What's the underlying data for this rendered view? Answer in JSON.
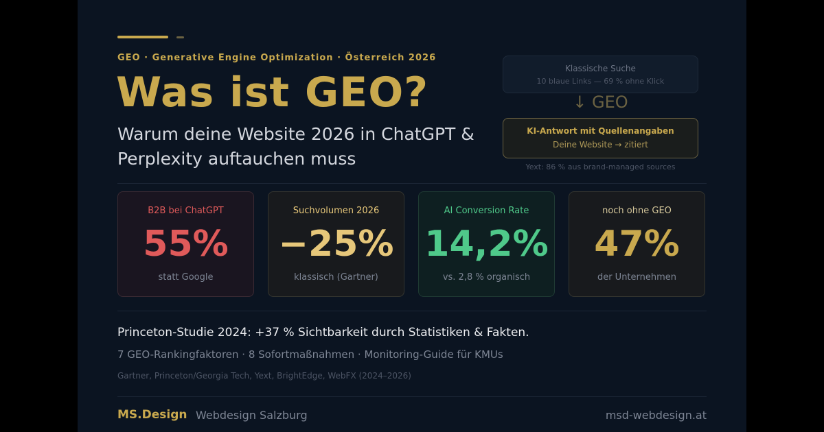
{
  "eyebrow": "GEO · Generative Engine Optimization · Österreich 2026",
  "title": "Was ist GEO?",
  "subtitle": "Warum deine Website 2026 in ChatGPT & Perplexity auftauchen muss",
  "comparison": {
    "classic_title": "Klassische Suche",
    "classic_sub": "10 blaue Links — 69 % ohne Klick",
    "arrow_label": "↓ GEO",
    "ki_title": "KI-Antwort mit Quellenangaben",
    "ki_sub": "Deine Website → zitiert",
    "note": "Yext: 86 % aus brand-managed sources"
  },
  "stats": [
    {
      "label": "B2B bei ChatGPT",
      "value": "55%",
      "sub": "statt Google",
      "color": "#e05a5a"
    },
    {
      "label": "Suchvolumen 2026",
      "value": "−25%",
      "sub": "klassisch (Gartner)",
      "color": "#e6c77a"
    },
    {
      "label": "AI Conversion Rate",
      "value": "14,2%",
      "sub": "vs. 2,8 % organisch",
      "color": "#4fc98a"
    },
    {
      "label": "noch ohne GEO",
      "value": "47%",
      "sub": "der Unternehmen",
      "color": "#c9a94e"
    }
  ],
  "princeton": "Princeton-Studie 2024: +37 % Sichtbarkeit durch Statistiken & Fakten.",
  "factors": "7 GEO-Rankingfaktoren · 8 Sofortmaßnahmen · Monitoring-Guide für KMUs",
  "sources": "Gartner, Princeton/Georgia Tech, Yext, BrightEdge, WebFX (2024–2026)",
  "footer": {
    "brand": "MS.Design",
    "brand_sub": "Webdesign Salzburg",
    "domain": "msd-webdesign.at"
  },
  "colors": {
    "accent": "#c9a94e",
    "background": "#0b1421"
  }
}
